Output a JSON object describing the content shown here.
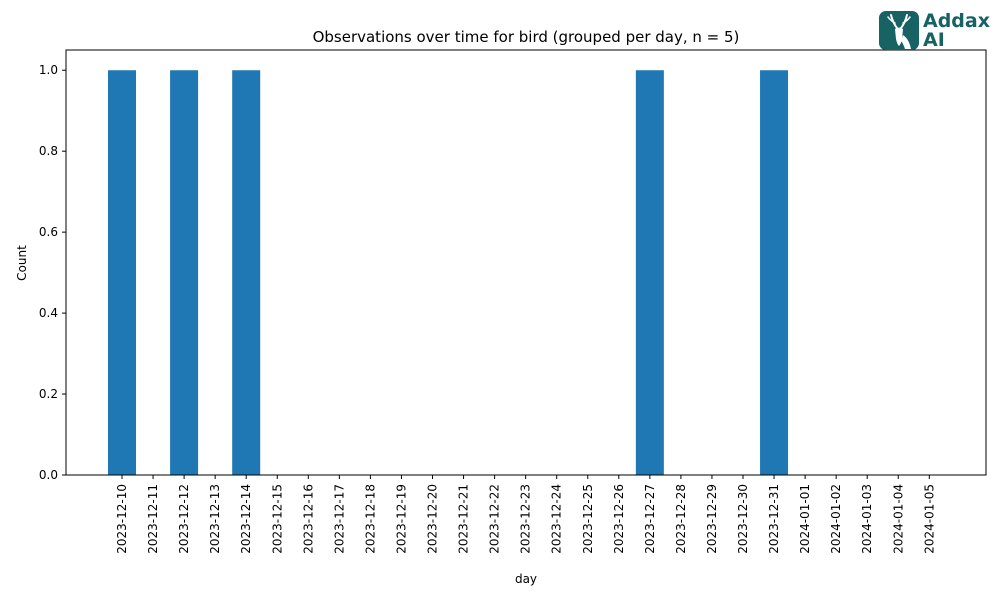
{
  "chart_data": {
    "type": "bar",
    "title": "Observations over time for bird (grouped per day, n = 5)",
    "xlabel": "day",
    "ylabel": "Count",
    "ylim": [
      0,
      1.05
    ],
    "yticks": [
      "0.0",
      "0.2",
      "0.4",
      "0.6",
      "0.8",
      "1.0"
    ],
    "categories": [
      "2023-12-10",
      "2023-12-11",
      "2023-12-12",
      "2023-12-13",
      "2023-12-14",
      "2023-12-15",
      "2023-12-16",
      "2023-12-17",
      "2023-12-18",
      "2023-12-19",
      "2023-12-20",
      "2023-12-21",
      "2023-12-22",
      "2023-12-23",
      "2023-12-24",
      "2023-12-25",
      "2023-12-26",
      "2023-12-27",
      "2023-12-28",
      "2023-12-29",
      "2023-12-30",
      "2023-12-31",
      "2024-01-01",
      "2024-01-02",
      "2024-01-03",
      "2024-01-04",
      "2024-01-05"
    ],
    "values": [
      1,
      0,
      1,
      0,
      1,
      0,
      0,
      0,
      0,
      0,
      0,
      0,
      0,
      0,
      0,
      0,
      0,
      1,
      0,
      0,
      0,
      1,
      0,
      0,
      0,
      0,
      0
    ],
    "bar_color": "#1f77b4",
    "grid": false,
    "legend": "none"
  },
  "logo": {
    "line1": "Addax",
    "line2": "AI",
    "color": "#176263",
    "icon": "addax-antelope-icon"
  }
}
